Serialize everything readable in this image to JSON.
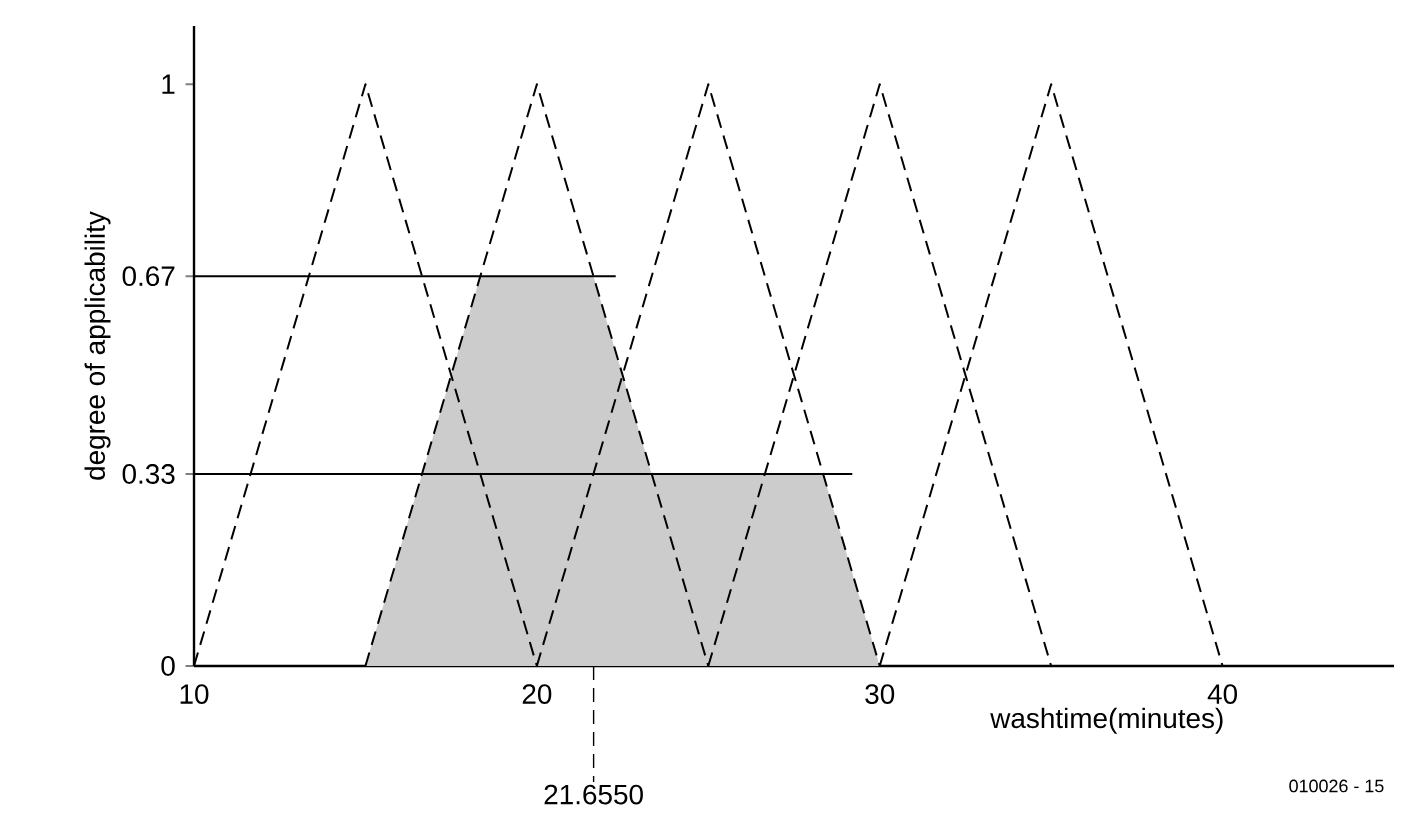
{
  "chart_data": {
    "type": "line",
    "xlabel": "washtime(minutes)",
    "ylabel": "degree of applicability",
    "xlim": [
      10,
      45
    ],
    "ylim": [
      0,
      1.1
    ],
    "xticks": [
      10,
      20,
      30,
      40
    ],
    "yticks": [
      0,
      0.33,
      0.67,
      1
    ],
    "grid": false,
    "marker": "none",
    "series": [
      {
        "type": "area",
        "color": "#cccccc",
        "x": [
          15,
          18.35,
          21.65,
          23.35,
          28.35,
          30
        ],
        "values": [
          0,
          0.67,
          0.67,
          0.33,
          0.33,
          0
        ]
      },
      {
        "color": "#000000",
        "line_style": "dashed",
        "x": [
          10,
          15,
          20
        ],
        "values": [
          0,
          1,
          0
        ]
      },
      {
        "color": "#000000",
        "line_style": "dashed",
        "x": [
          15,
          20,
          25
        ],
        "values": [
          0,
          1,
          0
        ]
      },
      {
        "color": "#000000",
        "line_style": "dashed",
        "x": [
          20,
          25,
          30
        ],
        "values": [
          0,
          1,
          0
        ]
      },
      {
        "color": "#000000",
        "line_style": "dashed",
        "x": [
          25,
          30,
          35
        ],
        "values": [
          0,
          1,
          0
        ]
      },
      {
        "color": "#000000",
        "line_style": "dashed",
        "x": [
          30,
          35,
          40
        ],
        "values": [
          0,
          1,
          0
        ]
      },
      {
        "color": "#000000",
        "line_style": "solid",
        "x": [
          10,
          22.3
        ],
        "values": [
          0.67,
          0.67
        ]
      },
      {
        "color": "#000000",
        "line_style": "solid",
        "x": [
          10,
          29.2
        ],
        "values": [
          0.33,
          0.33
        ]
      }
    ],
    "ref_lines": [
      {
        "axis": "x",
        "value": 21.655,
        "label": "21.6550",
        "line_style": "dashed"
      }
    ],
    "annotations": [
      "010026 - 15"
    ]
  }
}
